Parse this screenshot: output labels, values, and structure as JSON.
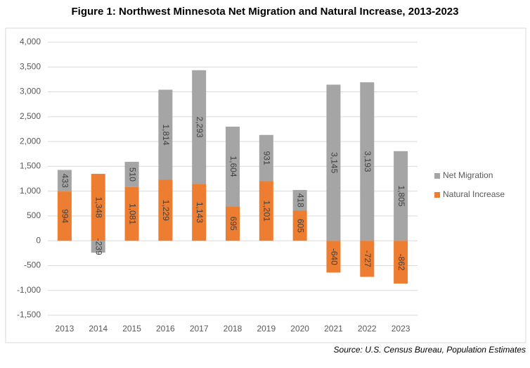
{
  "chart_data": {
    "type": "stacked_bar",
    "title": "Figure 1: Northwest Minnesota Net Migration and Natural Increase, 2013-2023",
    "source": "Source: U.S. Census Bureau, Population Estimates",
    "categories": [
      "2013",
      "2014",
      "2015",
      "2016",
      "2017",
      "2018",
      "2019",
      "2020",
      "2021",
      "2022",
      "2023"
    ],
    "series": [
      {
        "name": "Natural Increase",
        "color": "#ed7d31",
        "values": [
          994,
          1348,
          1081,
          1229,
          1143,
          695,
          1201,
          605,
          -640,
          -727,
          -862
        ],
        "value_labels": [
          "994",
          "1,348",
          "1,081",
          "1,229",
          "1,143",
          "695",
          "1,201",
          "605",
          "-640",
          "-727",
          "-862"
        ]
      },
      {
        "name": "Net Migration",
        "color": "#a5a5a5",
        "values": [
          433,
          -239,
          510,
          1814,
          2293,
          1604,
          931,
          418,
          3145,
          3193,
          1805
        ],
        "value_labels": [
          "433",
          "-239",
          "510",
          "1,814",
          "2,293",
          "1,604",
          "931",
          "418",
          "3,145",
          "3,193",
          "1,805"
        ]
      }
    ],
    "ylim": [
      -1500,
      4000
    ],
    "yticks": [
      {
        "value": -1500,
        "label": "-1,500"
      },
      {
        "value": -1000,
        "label": "-1,000"
      },
      -500,
      0,
      500,
      {
        "value": 1000,
        "label": "1,000"
      },
      {
        "value": 1500,
        "label": "1,500"
      },
      {
        "value": 2000,
        "label": "2,000"
      },
      {
        "value": 2500,
        "label": "2,500"
      },
      {
        "value": 3000,
        "label": "3,000"
      },
      {
        "value": 3500,
        "label": "3,500"
      },
      {
        "value": 4000,
        "label": "4,000"
      }
    ],
    "grid": true,
    "legend": "right"
  }
}
